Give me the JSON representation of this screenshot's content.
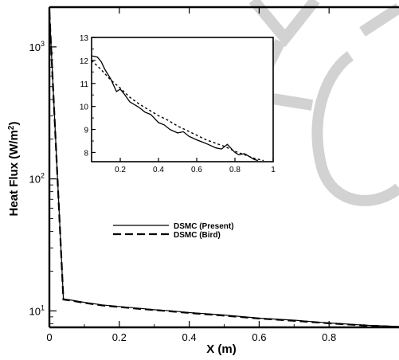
{
  "chart_data": [
    {
      "type": "line",
      "title": "",
      "xlabel": "X (m)",
      "ylabel": "Heat Flux (W/m^2)",
      "ylabel_main": "Heat Flux (W/m",
      "ylabel_sup": "2",
      "ylabel_close": ")",
      "xlim": [
        0,
        1
      ],
      "ylim": [
        7.5,
        2000
      ],
      "yscale": "log",
      "grid": false,
      "legend_position": "center-left",
      "x_ticks": [
        0,
        0.2,
        0.4,
        0.6,
        0.8
      ],
      "x_tick_labels": [
        "0",
        "0.2",
        "0.4",
        "0.6",
        "0.8"
      ],
      "y_ticks": [
        10,
        100,
        1000
      ],
      "y_tick_labels": [
        {
          "base": "10",
          "exp": "1"
        },
        {
          "base": "10",
          "exp": "2"
        },
        {
          "base": "10",
          "exp": "3"
        }
      ],
      "series": [
        {
          "name": "DSMC (Present)",
          "style": "solid",
          "color": "#000000",
          "x": [
            0,
            0.04,
            0.06,
            0.1,
            0.15,
            0.2,
            0.25,
            0.3,
            0.35,
            0.4,
            0.5,
            0.6,
            0.7,
            0.8,
            0.9,
            1.0
          ],
          "y": [
            1900,
            12.3,
            12.1,
            11.6,
            11.1,
            10.8,
            10.5,
            10.2,
            10.0,
            9.7,
            9.3,
            8.8,
            8.5,
            8.1,
            7.8,
            7.6
          ]
        },
        {
          "name": "DSMC (Bird)",
          "style": "dashed",
          "color": "#000000",
          "x": [
            0,
            0.04,
            0.06,
            0.1,
            0.15,
            0.2,
            0.25,
            0.3,
            0.35,
            0.4,
            0.5,
            0.6,
            0.7,
            0.8,
            0.9,
            1.0
          ],
          "y": [
            1850,
            12.2,
            12.0,
            11.5,
            11.0,
            10.7,
            10.4,
            10.15,
            9.9,
            9.65,
            9.2,
            8.75,
            8.4,
            8.05,
            7.75,
            7.55
          ]
        }
      ]
    },
    {
      "type": "line",
      "title": "",
      "xlabel": "",
      "ylabel": "",
      "xlim": [
        0.05,
        1
      ],
      "ylim": [
        7.6,
        13
      ],
      "grid": false,
      "x_ticks": [
        0.2,
        0.4,
        0.6,
        0.8,
        1
      ],
      "x_tick_labels": [
        "0.2",
        "0.4",
        "0.6",
        "0.8",
        "1"
      ],
      "y_ticks": [
        8,
        9,
        10,
        11,
        12,
        13
      ],
      "y_tick_labels": [
        "8",
        "9",
        "10",
        "11",
        "12",
        "13"
      ],
      "series": [
        {
          "name": "DSMC (Present)",
          "style": "solid",
          "color": "#000000",
          "x": [
            0.05,
            0.08,
            0.1,
            0.12,
            0.15,
            0.18,
            0.2,
            0.22,
            0.25,
            0.28,
            0.3,
            0.33,
            0.36,
            0.4,
            0.43,
            0.46,
            0.5,
            0.53,
            0.56,
            0.6,
            0.63,
            0.66,
            0.7,
            0.73,
            0.76,
            0.8,
            0.82,
            0.85,
            0.88,
            0.9,
            0.92
          ],
          "y": [
            12.2,
            12.15,
            11.95,
            11.6,
            11.2,
            10.65,
            10.75,
            10.55,
            10.2,
            10.05,
            9.95,
            9.75,
            9.65,
            9.3,
            9.2,
            9.0,
            8.85,
            8.9,
            8.7,
            8.55,
            8.45,
            8.35,
            8.2,
            8.15,
            8.35,
            8.0,
            7.9,
            7.95,
            7.8,
            7.7,
            7.65
          ]
        },
        {
          "name": "DSMC (Bird)",
          "style": "dashed",
          "color": "#000000",
          "x": [
            0.05,
            0.1,
            0.15,
            0.2,
            0.25,
            0.3,
            0.35,
            0.4,
            0.45,
            0.5,
            0.55,
            0.6,
            0.65,
            0.7,
            0.75,
            0.8,
            0.85,
            0.9,
            0.95
          ],
          "y": [
            12.0,
            11.6,
            11.15,
            10.8,
            10.4,
            10.1,
            9.85,
            9.6,
            9.4,
            9.15,
            8.95,
            8.75,
            8.55,
            8.4,
            8.25,
            8.05,
            7.9,
            7.75,
            7.65
          ]
        }
      ]
    }
  ],
  "watermark_color": "#d2d2d2"
}
